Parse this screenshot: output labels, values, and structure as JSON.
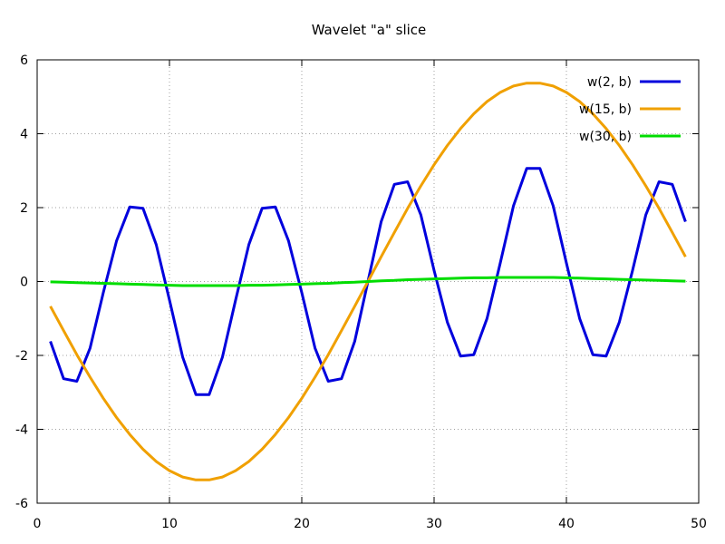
{
  "chart_data": {
    "type": "line",
    "title": "Wavelet \"a\" slice",
    "xlabel": "",
    "ylabel": "",
    "xlim": [
      0,
      50
    ],
    "ylim": [
      -6,
      6
    ],
    "xticks": [
      0,
      10,
      20,
      30,
      40,
      50
    ],
    "yticks": [
      -6,
      -4,
      -2,
      0,
      2,
      4,
      6
    ],
    "xtick_labels": [
      "0",
      "10",
      "20",
      "30",
      "40",
      "50"
    ],
    "ytick_labels": [
      "-6",
      "-4",
      "-2",
      "0",
      "2",
      "4",
      "6"
    ],
    "grid": true,
    "legend_position": "top-right",
    "series": [
      {
        "name": "w(2, b)",
        "color": "#0000dd",
        "x": [
          1,
          2,
          3,
          4,
          5,
          6,
          7,
          8,
          9,
          10,
          11,
          12,
          13,
          14,
          15,
          16,
          17,
          18,
          19,
          20,
          21,
          22,
          23,
          24,
          25,
          26,
          27,
          28,
          29,
          30,
          31,
          32,
          33,
          34,
          35,
          36,
          37,
          38,
          39,
          40,
          41,
          42,
          43,
          44,
          45,
          46,
          47,
          48,
          49
        ],
        "y": [
          -1.62,
          -2.63,
          -2.7,
          -1.8,
          -0.3,
          1.1,
          2.02,
          1.98,
          1.0,
          -0.5,
          -2.05,
          -3.06,
          -3.06,
          -2.05,
          -0.5,
          1.0,
          1.98,
          2.02,
          1.1,
          -0.3,
          -1.8,
          -2.7,
          -2.63,
          -1.62,
          0.0,
          1.62,
          2.63,
          2.7,
          1.8,
          0.3,
          -1.1,
          -2.02,
          -1.98,
          -1.0,
          0.5,
          2.05,
          3.06,
          3.06,
          2.05,
          0.5,
          -1.0,
          -1.98,
          -2.02,
          -1.1,
          0.3,
          1.8,
          2.7,
          2.63,
          1.62
        ]
      },
      {
        "name": "w(15, b)",
        "color": "#f0a000",
        "x": [
          1,
          2,
          3,
          4,
          5,
          6,
          7,
          8,
          9,
          10,
          11,
          12,
          13,
          14,
          15,
          16,
          17,
          18,
          19,
          20,
          21,
          22,
          23,
          24,
          25,
          26,
          27,
          28,
          29,
          30,
          31,
          32,
          33,
          34,
          35,
          36,
          37,
          38,
          39,
          40,
          41,
          42,
          43,
          44,
          45,
          46,
          47,
          48,
          49
        ],
        "y": [
          -0.67,
          -1.33,
          -1.98,
          -2.59,
          -3.16,
          -3.68,
          -4.14,
          -4.54,
          -4.87,
          -5.12,
          -5.29,
          -5.37,
          -5.37,
          -5.29,
          -5.12,
          -4.87,
          -4.54,
          -4.14,
          -3.68,
          -3.16,
          -2.59,
          -1.98,
          -1.33,
          -0.67,
          0.0,
          0.67,
          1.33,
          1.98,
          2.59,
          3.16,
          3.68,
          4.14,
          4.54,
          4.87,
          5.12,
          5.29,
          5.37,
          5.37,
          5.29,
          5.12,
          4.87,
          4.54,
          4.14,
          3.68,
          3.16,
          2.59,
          1.98,
          1.33,
          0.67
        ]
      },
      {
        "name": "w(30, b)",
        "color": "#00dd00",
        "x": [
          1,
          2,
          3,
          4,
          5,
          6,
          7,
          8,
          9,
          10,
          11,
          12,
          13,
          14,
          15,
          16,
          17,
          18,
          19,
          20,
          21,
          22,
          23,
          24,
          25,
          26,
          27,
          28,
          29,
          30,
          31,
          32,
          33,
          34,
          35,
          36,
          37,
          38,
          39,
          40,
          41,
          42,
          43,
          44,
          45,
          46,
          47,
          48,
          49
        ],
        "y": [
          -0.01,
          -0.02,
          -0.03,
          -0.04,
          -0.05,
          -0.06,
          -0.07,
          -0.08,
          -0.09,
          -0.1,
          -0.11,
          -0.11,
          -0.11,
          -0.11,
          -0.11,
          -0.1,
          -0.1,
          -0.09,
          -0.08,
          -0.07,
          -0.06,
          -0.05,
          -0.03,
          -0.02,
          0.0,
          0.02,
          0.03,
          0.05,
          0.06,
          0.07,
          0.08,
          0.09,
          0.1,
          0.1,
          0.11,
          0.11,
          0.11,
          0.11,
          0.11,
          0.1,
          0.09,
          0.08,
          0.07,
          0.06,
          0.05,
          0.04,
          0.03,
          0.02,
          0.01
        ]
      }
    ]
  }
}
